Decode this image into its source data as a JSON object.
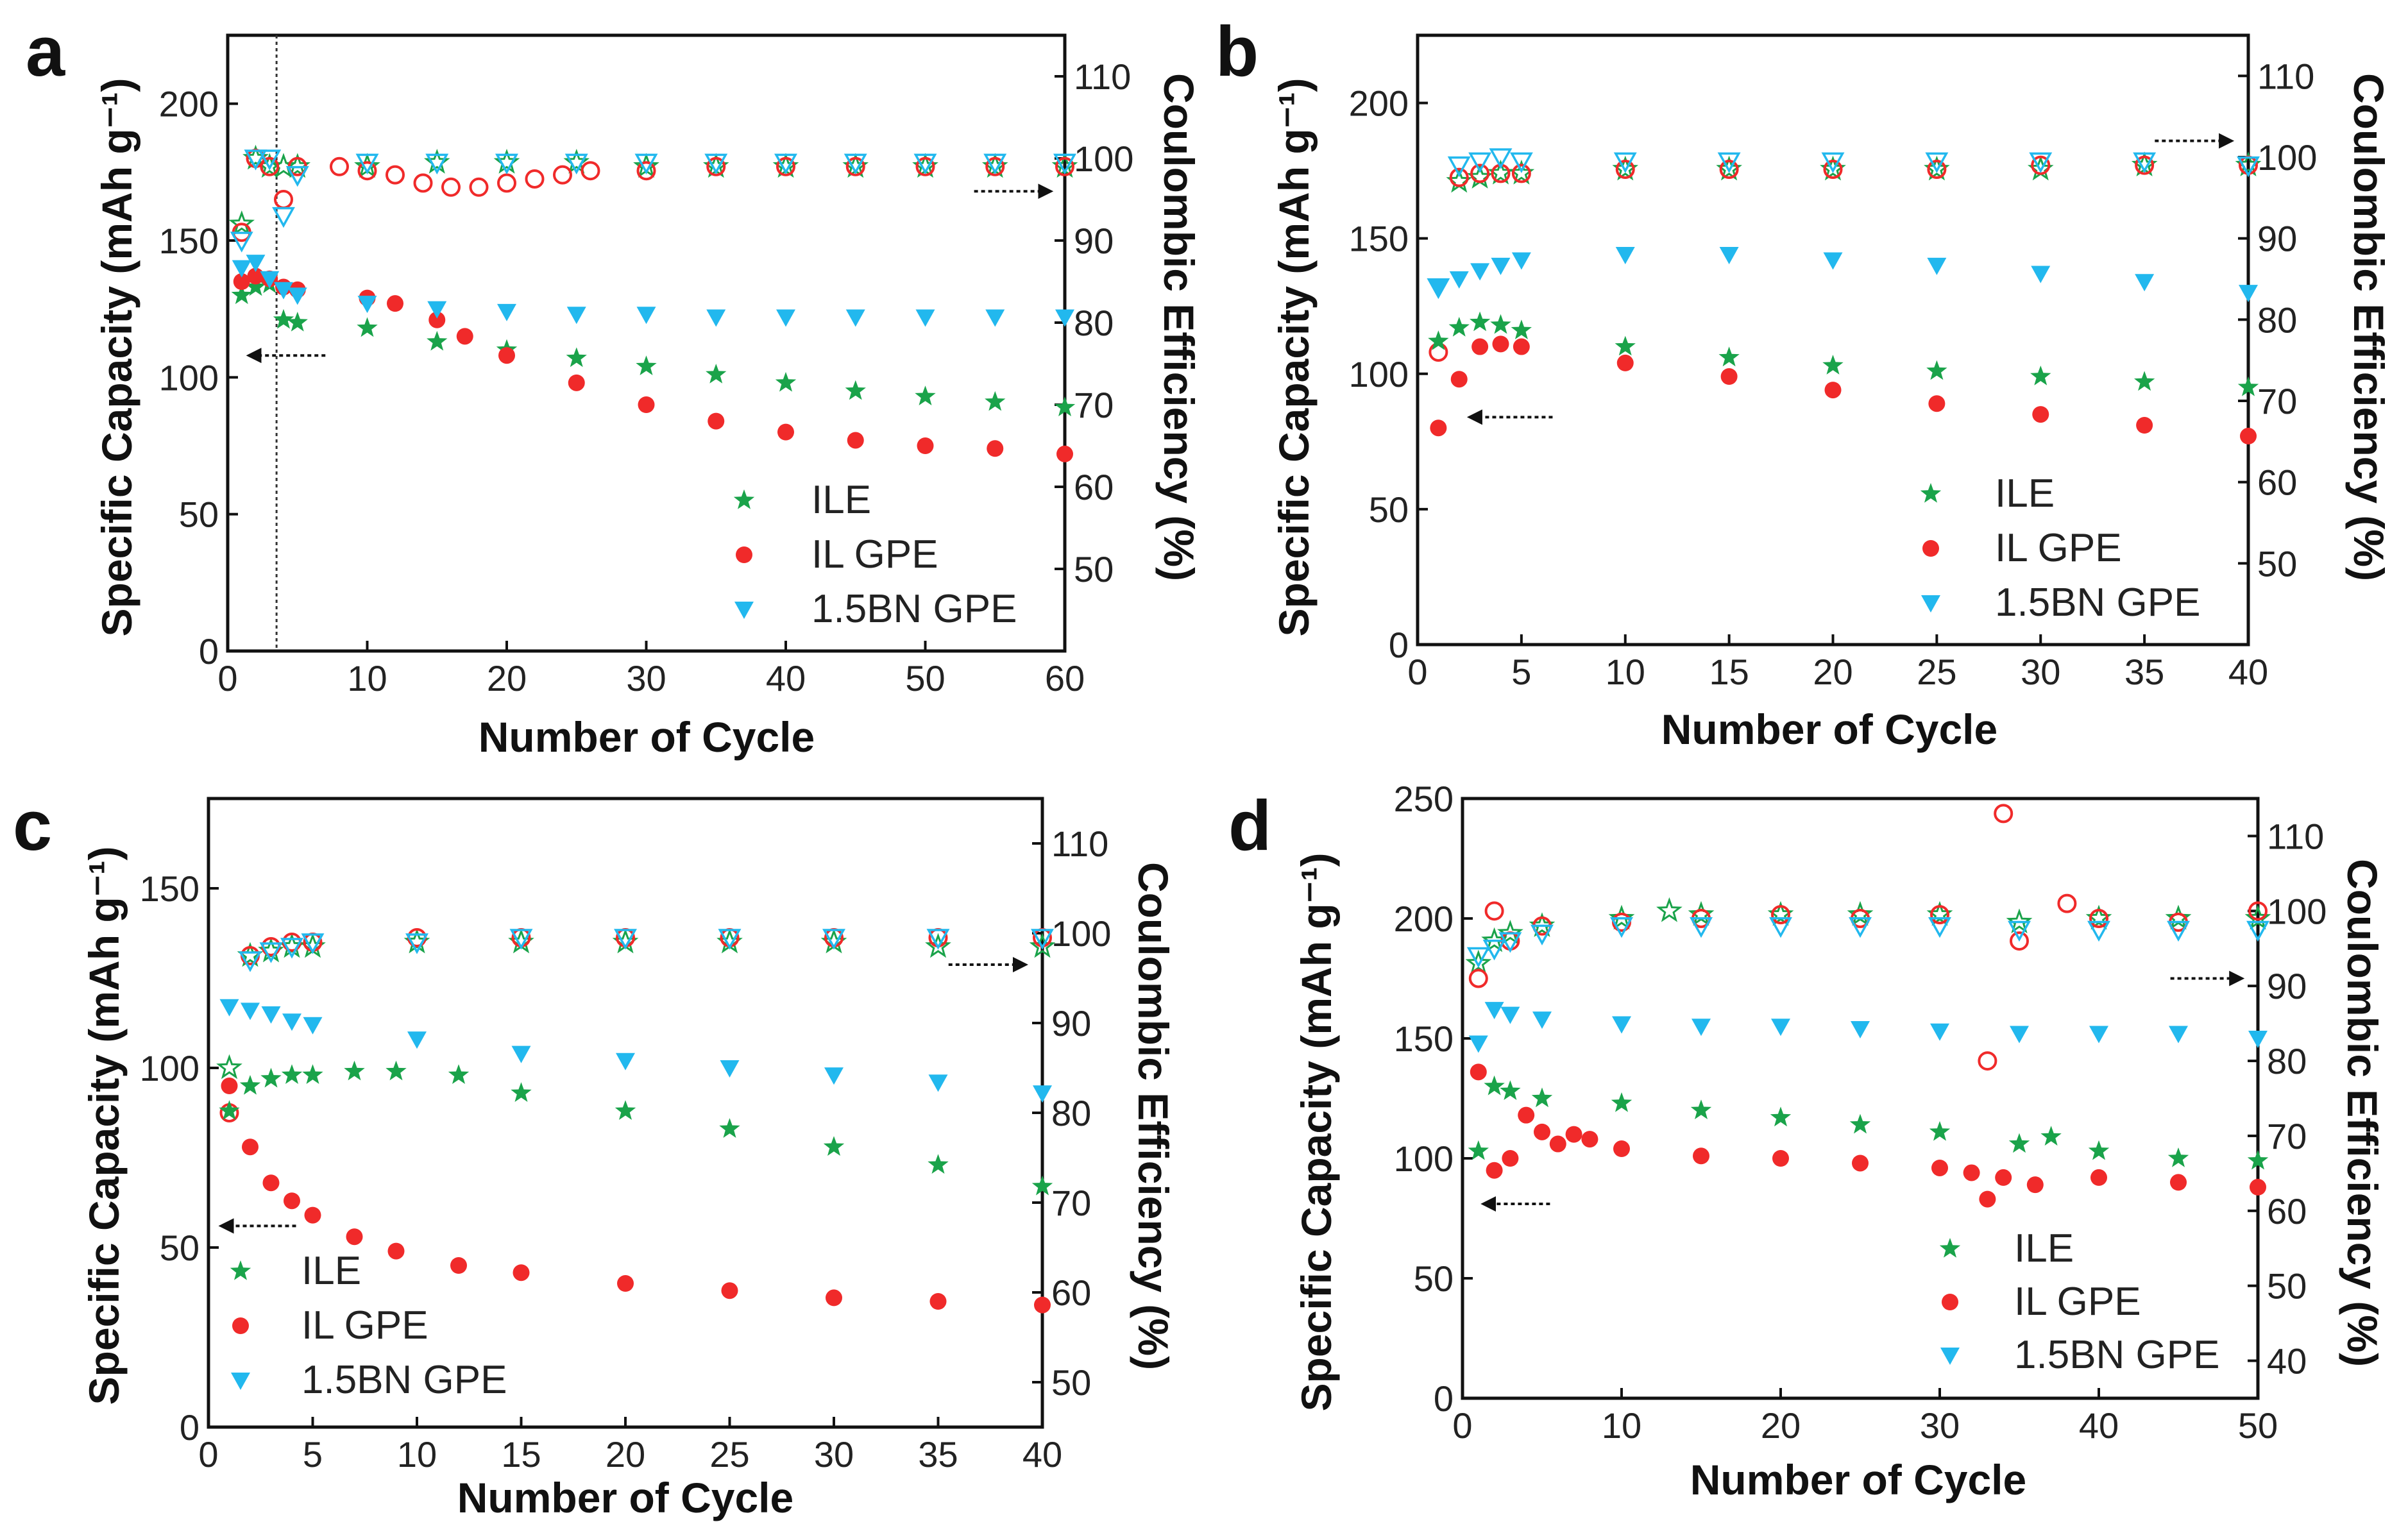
{
  "figure_colors": {
    "ILE": "#1aa34a",
    "IL GPE": "#f02a2a",
    "1.5BN GPE": "#22b8ee"
  },
  "panel_labels": {
    "a": "a",
    "b": "b",
    "c": "c",
    "d": "d"
  },
  "chart_data": [
    {
      "panel": "a",
      "type": "scatter",
      "xlabel": "Number of Cycle",
      "ylabel": "Specific Capacity (mAh g⁻¹)",
      "y2label": "Coulombic  Efficiency (%)",
      "xlim": [
        0,
        60
      ],
      "ylim": [
        0,
        225
      ],
      "y2lim": [
        40,
        115
      ],
      "xticks": [
        "0",
        "10",
        "20",
        "30",
        "40",
        "50",
        "60"
      ],
      "yticks": [
        "0",
        "50",
        "100",
        "150",
        "200"
      ],
      "y2ticks": [
        "50",
        "60",
        "70",
        "80",
        "90",
        "100",
        "110"
      ],
      "divider_x": 3.5,
      "legend": [
        "ILE",
        "IL GPE",
        "1.5BN GPE"
      ],
      "capacity": {
        "ILE": {
          "x": [
            1,
            2,
            3,
            4,
            5,
            10,
            15,
            20,
            25,
            30,
            35,
            40,
            45,
            50,
            55,
            60
          ],
          "y": [
            130,
            133,
            134,
            121,
            120,
            118,
            113,
            110,
            107,
            104,
            101,
            98,
            95,
            93,
            91,
            89
          ]
        },
        "IL GPE": {
          "x": [
            1,
            2,
            3,
            4,
            5,
            10,
            12,
            15,
            17,
            20,
            25,
            30,
            35,
            40,
            45,
            50,
            55,
            60
          ],
          "y": [
            135,
            137,
            136,
            133,
            132,
            129,
            127,
            121,
            115,
            108,
            98,
            90,
            84,
            80,
            77,
            75,
            74,
            72
          ]
        },
        "1.5BN GPE": {
          "x": [
            1,
            2,
            3,
            4,
            5,
            10,
            15,
            20,
            25,
            30,
            35,
            40,
            45,
            50,
            55,
            60
          ],
          "y": [
            140,
            142,
            136,
            132,
            130,
            127,
            125,
            124,
            123,
            123,
            122,
            122,
            122,
            122,
            122,
            122
          ]
        }
      },
      "efficiency": {
        "ILE": {
          "x": [
            1,
            2,
            3,
            4,
            5,
            10,
            15,
            20,
            25,
            30,
            35,
            40,
            45,
            50,
            55,
            60
          ],
          "y": [
            92,
            100,
            99,
            99,
            99,
            99,
            99.5,
            99.5,
            99.5,
            99,
            99,
            99,
            99,
            99,
            99,
            99
          ]
        },
        "IL GPE": {
          "x": [
            1,
            2,
            3,
            4,
            5,
            8,
            10,
            12,
            14,
            16,
            18,
            20,
            22,
            24,
            26,
            30,
            35,
            40,
            45,
            50,
            55,
            60
          ],
          "y": [
            91,
            100,
            99,
            95,
            99,
            99,
            98.5,
            98,
            97,
            96.5,
            96.5,
            97,
            97.5,
            98,
            98.5,
            98.5,
            99,
            99,
            99,
            99,
            99,
            99
          ]
        },
        "1.5BN GPE": {
          "x": [
            1,
            2,
            3,
            4,
            5,
            10,
            15,
            20,
            25,
            30,
            35,
            40,
            45,
            50,
            55,
            60
          ],
          "y": [
            90,
            100,
            100,
            93,
            98,
            99.5,
            99.5,
            99.5,
            99.5,
            99.5,
            99.5,
            99.5,
            99.5,
            99.5,
            99.5,
            99.5
          ]
        }
      },
      "arrows": [
        {
          "x1": 7,
          "x2": 1.5,
          "y": 108,
          "axis": "left"
        },
        {
          "x1": 53.5,
          "x2": 59,
          "y": 96,
          "axis": "right"
        }
      ]
    },
    {
      "panel": "b",
      "type": "scatter",
      "xlabel": "Number of Cycle",
      "ylabel": "Specific Capacity (mAh g⁻¹)",
      "y2label": "Coulombic  Efficiency (%)",
      "xlim": [
        0,
        40
      ],
      "ylim": [
        0,
        225
      ],
      "y2lim": [
        40,
        115
      ],
      "xticks": [
        "0",
        "5",
        "10",
        "15",
        "20",
        "25",
        "30",
        "35",
        "40"
      ],
      "yticks": [
        "0",
        "50",
        "100",
        "150",
        "200"
      ],
      "y2ticks": [
        "50",
        "60",
        "70",
        "80",
        "90",
        "100",
        "110"
      ],
      "legend": [
        "ILE",
        "IL GPE",
        "1.5BN GPE"
      ],
      "capacity": {
        "ILE": {
          "x": [
            1,
            2,
            3,
            4,
            5,
            10,
            15,
            20,
            25,
            30,
            35,
            40
          ],
          "y": [
            112,
            117,
            119,
            118,
            116,
            110,
            106,
            103,
            101,
            99,
            97,
            95
          ]
        },
        "IL GPE": {
          "x": [
            1,
            2,
            3,
            4,
            5,
            10,
            15,
            20,
            25,
            30,
            35,
            40
          ],
          "y": [
            80,
            98,
            110,
            111,
            110,
            104,
            99,
            94,
            89,
            85,
            81,
            77
          ]
        },
        "1.5BN GPE": {
          "x": [
            1,
            2,
            3,
            4,
            5,
            10,
            15,
            20,
            25,
            30,
            35,
            40
          ],
          "y": [
            132,
            135,
            138,
            140,
            142,
            144,
            144,
            142,
            140,
            137,
            134,
            130
          ]
        }
      },
      "efficiency": {
        "ILE": {
          "x": [
            2,
            3,
            4,
            5,
            10,
            15,
            20,
            25,
            30,
            35,
            40
          ],
          "y": [
            97,
            97.5,
            98,
            98,
            98.5,
            98.5,
            98.5,
            98.5,
            98.5,
            99,
            99
          ]
        },
        "IL GPE": {
          "x": [
            1,
            2,
            3,
            4,
            5,
            10,
            15,
            20,
            25,
            30,
            35,
            40
          ],
          "y": [
            76,
            97.5,
            98,
            98,
            98,
            98.5,
            98.5,
            98.5,
            98.5,
            99,
            99,
            99
          ]
        },
        "1.5BN GPE": {
          "x": [
            1,
            2,
            3,
            4,
            5,
            10,
            15,
            20,
            25,
            30,
            35,
            40
          ],
          "y": [
            84,
            99,
            99.5,
            100,
            99.5,
            99.5,
            99.5,
            99.5,
            99.5,
            99.5,
            99.5,
            99
          ]
        }
      },
      "arrows": [
        {
          "x1": 6.5,
          "x2": 2.5,
          "y": 84,
          "axis": "left"
        },
        {
          "x1": 35.5,
          "x2": 39.2,
          "y": 102,
          "axis": "right"
        }
      ]
    },
    {
      "panel": "c",
      "type": "scatter",
      "xlabel": "Number of Cycle",
      "ylabel": "Specific Capacity (mAh g⁻¹)",
      "y2label": "Coulombic  Efficiency (%)",
      "xlim": [
        0,
        40
      ],
      "ylim": [
        0,
        175
      ],
      "y2lim": [
        45,
        115
      ],
      "xticks": [
        "0",
        "5",
        "10",
        "15",
        "20",
        "25",
        "30",
        "35",
        "40"
      ],
      "yticks": [
        "0",
        "50",
        "100",
        "150"
      ],
      "y2ticks": [
        "50",
        "60",
        "70",
        "80",
        "90",
        "100",
        "110"
      ],
      "legend": [
        "ILE",
        "IL GPE",
        "1.5BN GPE"
      ],
      "capacity": {
        "ILE": {
          "x": [
            1,
            2,
            3,
            4,
            5,
            7,
            9,
            12,
            15,
            20,
            25,
            30,
            35,
            40
          ],
          "y": [
            88,
            95,
            97,
            98,
            98,
            99,
            99,
            98,
            93,
            88,
            83,
            78,
            73,
            67
          ]
        },
        "IL GPE": {
          "x": [
            1,
            2,
            3,
            4,
            5,
            7,
            9,
            12,
            15,
            20,
            25,
            30,
            35,
            40
          ],
          "y": [
            95,
            78,
            68,
            63,
            59,
            53,
            49,
            45,
            43,
            40,
            38,
            36,
            35,
            34
          ]
        },
        "1.5BN GPE": {
          "x": [
            1,
            2,
            3,
            4,
            5,
            10,
            15,
            20,
            25,
            30,
            35,
            40
          ],
          "y": [
            117,
            116,
            115,
            113,
            112,
            108,
            104,
            102,
            100,
            98,
            96,
            93
          ]
        }
      },
      "efficiency": {
        "ILE": {
          "x": [
            1,
            2,
            3,
            4,
            5,
            10,
            15,
            20,
            25,
            30,
            35,
            40
          ],
          "y": [
            85,
            97.5,
            98,
            98.5,
            98.5,
            99,
            99,
            99,
            99,
            99,
            98.5,
            98.5
          ]
        },
        "IL GPE": {
          "x": [
            1,
            2,
            3,
            4,
            5,
            10,
            15,
            20,
            25,
            30,
            35,
            40
          ],
          "y": [
            80,
            97.5,
            98.5,
            99,
            99,
            99.5,
            99.5,
            99.5,
            99.5,
            99.5,
            99.5,
            99.5
          ]
        },
        "1.5BN GPE": {
          "x": [
            2,
            3,
            4,
            5,
            10,
            15,
            20,
            25,
            30,
            35,
            40
          ],
          "y": [
            97,
            98,
            98.5,
            99,
            99,
            99.5,
            99.5,
            99.5,
            99.5,
            99.5,
            99.5
          ]
        }
      },
      "arrows": [
        {
          "x1": 4.2,
          "x2": 0.6,
          "y": 56,
          "axis": "left"
        },
        {
          "x1": 35.5,
          "x2": 39.2,
          "y": 96.5,
          "axis": "right"
        }
      ]
    },
    {
      "panel": "d",
      "type": "scatter",
      "xlabel": "Number of Cycle",
      "ylabel": "Specific Capacity (mAh g⁻¹)",
      "y2label": "Coulombic  Efficiency (%)",
      "xlim": [
        0,
        50
      ],
      "ylim": [
        0,
        250
      ],
      "y2lim": [
        35,
        115
      ],
      "xticks": [
        "0",
        "10",
        "20",
        "30",
        "40",
        "50"
      ],
      "yticks": [
        "0",
        "50",
        "100",
        "150",
        "200",
        "250"
      ],
      "y2ticks": [
        "40",
        "50",
        "60",
        "70",
        "80",
        "90",
        "100",
        "110"
      ],
      "legend": [
        "ILE",
        "IL GPE",
        "1.5BN GPE"
      ],
      "capacity": {
        "ILE": {
          "x": [
            1,
            2,
            3,
            5,
            10,
            15,
            20,
            25,
            30,
            35,
            37,
            40,
            45,
            50
          ],
          "y": [
            103,
            130,
            128,
            125,
            123,
            120,
            117,
            114,
            111,
            106,
            109,
            103,
            100,
            99
          ]
        },
        "IL GPE": {
          "x": [
            1,
            2,
            3,
            4,
            5,
            6,
            7,
            8,
            10,
            15,
            20,
            25,
            30,
            32,
            33,
            34,
            36,
            40,
            45,
            50
          ],
          "y": [
            136,
            95,
            100,
            118,
            111,
            106,
            110,
            108,
            104,
            101,
            100,
            98,
            96,
            94,
            83,
            92,
            89,
            92,
            90,
            88
          ]
        },
        "1.5BN GPE": {
          "x": [
            1,
            2,
            3,
            5,
            10,
            15,
            20,
            25,
            30,
            35,
            40,
            45,
            50
          ],
          "y": [
            148,
            162,
            160,
            158,
            156,
            155,
            155,
            154,
            153,
            152,
            152,
            152,
            150
          ]
        }
      },
      "efficiency": {
        "ILE": {
          "x": [
            1,
            2,
            3,
            5,
            10,
            13,
            15,
            20,
            25,
            30,
            35,
            40,
            45,
            50
          ],
          "y": [
            93,
            96,
            97,
            98,
            99,
            100,
            99.5,
            99.5,
            99.5,
            99.5,
            98.5,
            99,
            99,
            99
          ]
        },
        "IL GPE": {
          "x": [
            1,
            2,
            3,
            5,
            10,
            15,
            20,
            25,
            30,
            33,
            34,
            35,
            38,
            40,
            45,
            50
          ],
          "y": [
            91,
            100,
            96,
            98,
            98.5,
            99,
            99.5,
            99,
            99.5,
            80,
            113,
            96,
            101,
            99,
            98.5,
            100
          ]
        },
        "1.5BN GPE": {
          "x": [
            1,
            2,
            3,
            5,
            10,
            15,
            20,
            25,
            30,
            35,
            40,
            45,
            50
          ],
          "y": [
            94,
            95,
            96,
            97,
            98,
            98,
            98,
            98,
            98,
            97.5,
            97.5,
            97.5,
            97.5
          ]
        }
      },
      "arrows": [
        {
          "x1": 5.5,
          "x2": 1.3,
          "y": 81,
          "axis": "left"
        },
        {
          "x1": 44.5,
          "x2": 49,
          "y": 91,
          "axis": "right"
        }
      ]
    }
  ]
}
